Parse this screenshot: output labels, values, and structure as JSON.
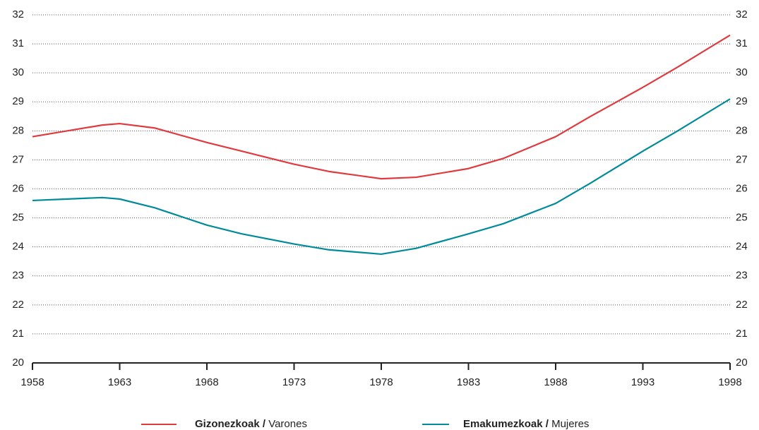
{
  "chart_data": {
    "type": "line",
    "x": [
      1958,
      1960,
      1962,
      1963,
      1965,
      1968,
      1970,
      1973,
      1975,
      1978,
      1980,
      1983,
      1985,
      1988,
      1990,
      1993,
      1995,
      1998
    ],
    "series": [
      {
        "name": "Gizonezkoak / Varones",
        "color": "#e03a3e",
        "values": [
          27.8,
          28.0,
          28.2,
          28.25,
          28.1,
          27.6,
          27.3,
          26.85,
          26.6,
          26.35,
          26.4,
          26.7,
          27.05,
          27.8,
          28.5,
          29.5,
          30.2,
          31.3
        ]
      },
      {
        "name": "Emakumezkoak / Mujeres",
        "color": "#008b9a",
        "values": [
          25.6,
          25.65,
          25.7,
          25.65,
          25.35,
          24.75,
          24.45,
          24.1,
          23.9,
          23.75,
          23.95,
          24.45,
          24.8,
          25.5,
          26.2,
          27.3,
          28.0,
          29.1
        ]
      }
    ],
    "xlim": [
      1958,
      1998
    ],
    "xticks": [
      1958,
      1963,
      1968,
      1973,
      1978,
      1983,
      1988,
      1993,
      1998
    ],
    "ylim": [
      20,
      32
    ],
    "yticks": [
      20,
      21,
      22,
      23,
      24,
      25,
      26,
      27,
      28,
      29,
      30,
      31,
      32
    ],
    "y2lim": [
      20,
      32
    ],
    "y2ticks": [
      20,
      21,
      22,
      23,
      24,
      25,
      26,
      27,
      28,
      29,
      30,
      31,
      32
    ],
    "grid": true
  }
}
